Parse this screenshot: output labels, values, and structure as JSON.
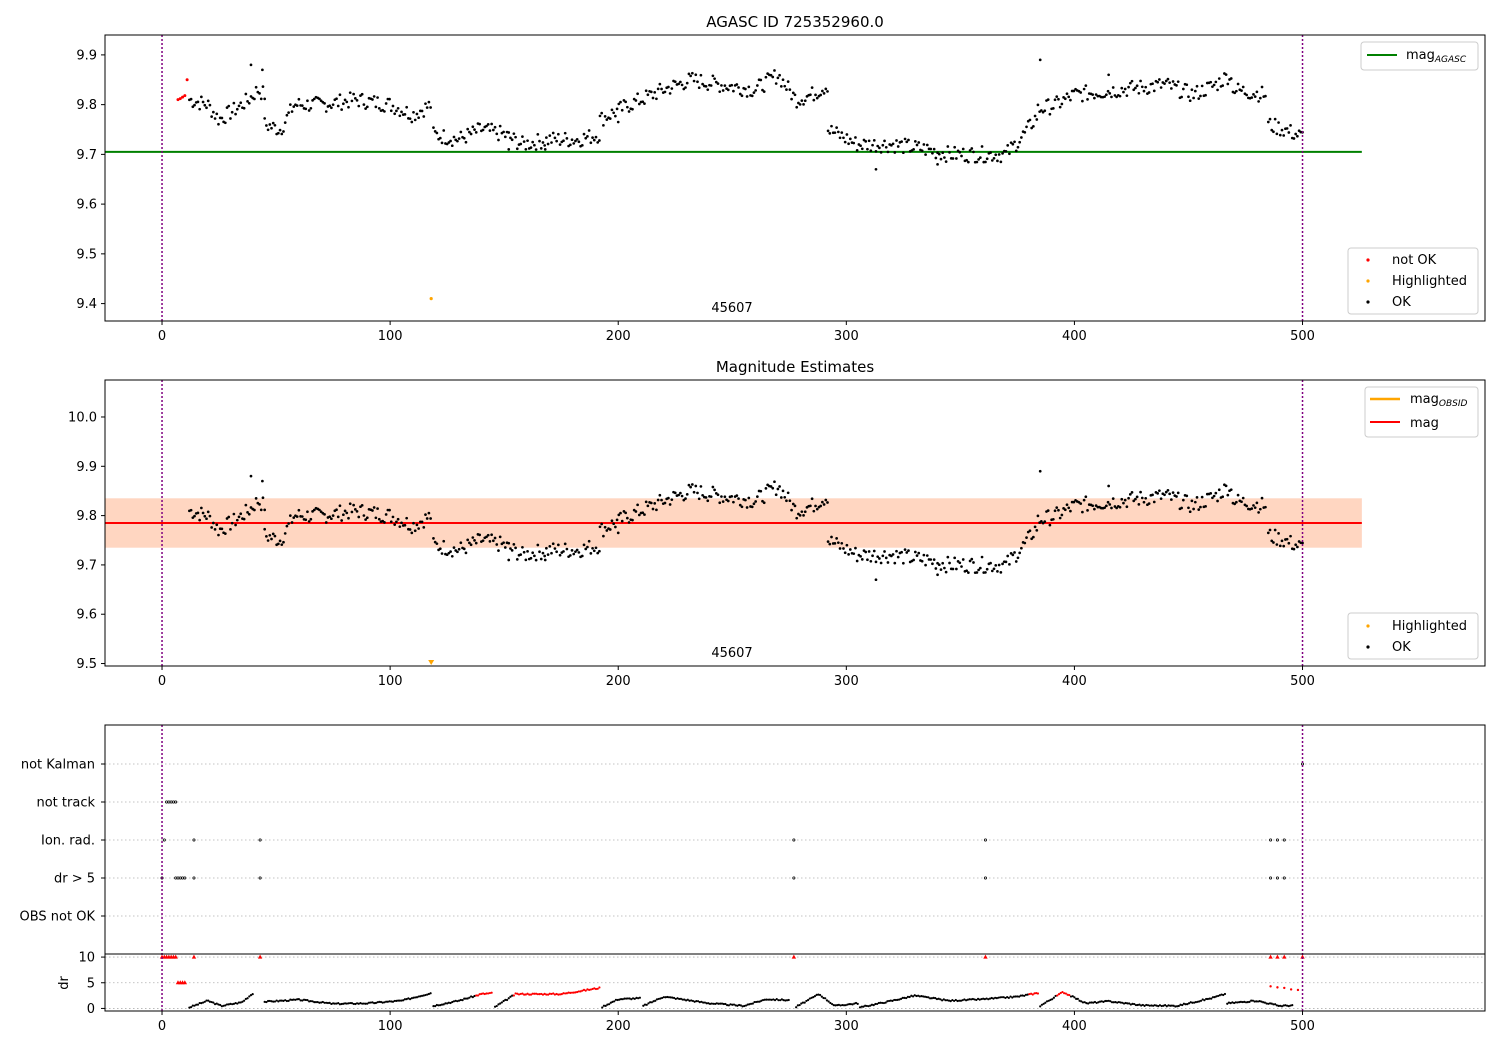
{
  "figure": {
    "panel1": {
      "title": "AGASC ID 725352960.0",
      "mag_agasc": 9.705,
      "obsid_label": "45607",
      "legend_line": {
        "label": "mag",
        "sub": "AGASC"
      },
      "legend_points": [
        "not OK",
        "Highlighted",
        "OK"
      ],
      "xlim": [
        -25,
        580
      ],
      "ylim": [
        9.365,
        9.94
      ],
      "xticks": [
        0,
        100,
        200,
        300,
        400,
        500
      ],
      "yticks": [
        9.4,
        9.5,
        9.6,
        9.7,
        9.8,
        9.9
      ],
      "vlines": [
        0,
        500
      ]
    },
    "panel2": {
      "title": "Magnitude Estimates",
      "mag": 9.785,
      "mag_band": [
        9.735,
        9.835
      ],
      "mag_obsid": 9.785,
      "obsid_label": "45607",
      "legend_lines": [
        {
          "label": "mag",
          "sub": "OBSID"
        },
        {
          "label": "mag",
          "sub": ""
        }
      ],
      "legend_points": [
        "Highlighted",
        "OK"
      ],
      "xlim": [
        -25,
        580
      ],
      "ylim": [
        9.495,
        10.075
      ],
      "xticks": [
        0,
        100,
        200,
        300,
        400,
        500
      ],
      "yticks": [
        9.5,
        9.6,
        9.7,
        9.8,
        9.9,
        10.0
      ],
      "vlines": [
        0,
        500
      ]
    },
    "panel3": {
      "flag_labels": [
        "not Kalman",
        "not track",
        "Ion. rad.",
        "dr > 5",
        "OBS not OK"
      ],
      "flag_points": {
        "not Kalman": [
          500
        ],
        "not track": [
          2,
          3,
          4,
          5,
          6
        ],
        "Ion. rad.": [
          1,
          14,
          43,
          277,
          361,
          486,
          489,
          492
        ],
        "dr > 5": [
          0,
          6,
          7,
          8,
          9,
          10,
          14,
          43,
          277,
          361,
          486,
          489,
          492
        ],
        "OBS not OK": []
      },
      "dr_ylabel": "dr",
      "dr_yticks": [
        0,
        5,
        10
      ],
      "dr_ylim": [
        -0.5,
        10.6
      ],
      "xlim": [
        -25,
        580
      ],
      "xticks": [
        0,
        100,
        200,
        300,
        400,
        500
      ],
      "vlines": [
        0,
        500
      ]
    }
  },
  "colors": {
    "ok": "#000000",
    "not_ok": "#ff0000",
    "highlighted": "#ffa500",
    "agasc_line": "#008000",
    "mag_line": "#ff0000",
    "mag_obsid_line": "#ffa500",
    "band_fill": "#ffc0cb",
    "band_obsid_fill": "#ffd2b4",
    "vline": "#800080",
    "grid": "#b0b0b0"
  },
  "chart_data": {
    "type": "scatter",
    "title": "AGASC ID 725352960.0",
    "subtitle": "Magnitude Estimates",
    "x_range": [
      0,
      500
    ],
    "series": [
      {
        "name": "OK",
        "color": "#000000",
        "segments": [
          {
            "x0": 12,
            "x1": 45,
            "knots": [
              [
                12,
                9.81
              ],
              [
                20,
                9.8
              ],
              [
                25,
                9.77
              ],
              [
                32,
                9.79
              ],
              [
                38,
                9.81
              ],
              [
                42,
                9.83
              ],
              [
                45,
                9.82
              ]
            ]
          },
          {
            "x0": 45,
            "x1": 118,
            "knots": [
              [
                45,
                9.76
              ],
              [
                52,
                9.75
              ],
              [
                58,
                9.8
              ],
              [
                70,
                9.8
              ],
              [
                85,
                9.81
              ],
              [
                100,
                9.8
              ],
              [
                110,
                9.78
              ],
              [
                118,
                9.8
              ]
            ]
          },
          {
            "x0": 119,
            "x1": 192,
            "knots": [
              [
                119,
                9.74
              ],
              [
                130,
                9.73
              ],
              [
                140,
                9.75
              ],
              [
                150,
                9.74
              ],
              [
                158,
                9.72
              ],
              [
                170,
                9.73
              ],
              [
                182,
                9.73
              ],
              [
                192,
                9.74
              ]
            ]
          },
          {
            "x0": 192,
            "x1": 292,
            "knots": [
              [
                192,
                9.77
              ],
              [
                205,
                9.8
              ],
              [
                220,
                9.83
              ],
              [
                232,
                9.85
              ],
              [
                245,
                9.84
              ],
              [
                260,
                9.83
              ],
              [
                270,
                9.86
              ],
              [
                278,
                9.81
              ],
              [
                285,
                9.82
              ],
              [
                292,
                9.84
              ]
            ]
          },
          {
            "x0": 292,
            "x1": 384,
            "knots": [
              [
                292,
                9.75
              ],
              [
                305,
                9.72
              ],
              [
                320,
                9.72
              ],
              [
                335,
                9.71
              ],
              [
                345,
                9.7
              ],
              [
                355,
                9.7
              ],
              [
                370,
                9.7
              ],
              [
                378,
                9.74
              ],
              [
                384,
                9.78
              ]
            ]
          },
          {
            "x0": 384,
            "x1": 484,
            "knots": [
              [
                384,
                9.79
              ],
              [
                392,
                9.8
              ],
              [
                400,
                9.82
              ],
              [
                420,
                9.83
              ],
              [
                440,
                9.84
              ],
              [
                452,
                9.82
              ],
              [
                462,
                9.84
              ],
              [
                468,
                9.86
              ],
              [
                470,
                9.83
              ],
              [
                484,
                9.82
              ]
            ]
          },
          {
            "x0": 485,
            "x1": 500,
            "knots": [
              [
                485,
                9.76
              ],
              [
                492,
                9.75
              ],
              [
                500,
                9.735
              ]
            ]
          }
        ],
        "extras": [
          [
            39,
            9.88
          ],
          [
            44,
            9.87
          ],
          [
            385,
            9.89
          ],
          [
            415,
            9.86
          ],
          [
            313,
            9.67
          ],
          [
            340,
            9.68
          ],
          [
            152,
            9.71
          ],
          [
            168,
            9.71
          ],
          [
            200,
            9.765
          ]
        ]
      },
      {
        "name": "not OK",
        "color": "#ff0000",
        "points": [
          [
            7,
            9.81
          ],
          [
            8,
            9.812
          ],
          [
            9,
            9.815
          ],
          [
            10,
            9.818
          ],
          [
            11,
            9.85
          ]
        ]
      },
      {
        "name": "Highlighted",
        "color": "#ffa500",
        "points": [
          [
            118,
            9.41
          ]
        ]
      }
    ],
    "mag_agasc": 9.705,
    "mag": 9.785,
    "dr": {
      "red_points": [
        [
          0,
          10
        ],
        [
          1,
          10
        ],
        [
          2,
          10
        ],
        [
          3,
          10
        ],
        [
          4,
          10
        ],
        [
          5,
          10
        ],
        [
          6,
          10
        ],
        [
          7,
          5
        ],
        [
          8,
          5
        ],
        [
          9,
          5
        ],
        [
          10,
          5
        ],
        [
          14,
          10
        ],
        [
          43,
          10
        ],
        [
          277,
          10
        ],
        [
          361,
          10
        ],
        [
          486,
          10
        ],
        [
          489,
          10
        ],
        [
          492,
          10
        ],
        [
          500,
          10
        ]
      ],
      "segments": [
        {
          "x0": 12,
          "x1": 40,
          "knots": [
            [
              12,
              0.2
            ],
            [
              20,
              1.5
            ],
            [
              26,
              0.5
            ],
            [
              35,
              1.2
            ],
            [
              40,
              3.0
            ]
          ]
        },
        {
          "x0": 45,
          "x1": 118,
          "knots": [
            [
              45,
              1.3
            ],
            [
              60,
              1.7
            ],
            [
              75,
              0.9
            ],
            [
              90,
              1.0
            ],
            [
              105,
              1.5
            ],
            [
              118,
              3.0
            ]
          ]
        },
        {
          "x0": 119,
          "x1": 145,
          "knots": [
            [
              119,
              0.5
            ],
            [
              130,
              1.5
            ],
            [
              140,
              2.8
            ],
            [
              145,
              3.0
            ]
          ]
        },
        {
          "x0": 146,
          "x1": 192,
          "knots": [
            [
              146,
              0.3
            ],
            [
              155,
              2.8
            ],
            [
              175,
              2.8
            ],
            [
              192,
              4.0
            ]
          ]
        },
        {
          "x0": 193,
          "x1": 210,
          "knots": [
            [
              193,
              0.3
            ],
            [
              200,
              1.8
            ],
            [
              210,
              2.0
            ]
          ]
        },
        {
          "x0": 211,
          "x1": 275,
          "knots": [
            [
              211,
              0.5
            ],
            [
              220,
              2.3
            ],
            [
              240,
              1.0
            ],
            [
              255,
              0.5
            ],
            [
              265,
              1.8
            ],
            [
              275,
              1.6
            ]
          ]
        },
        {
          "x0": 278,
          "x1": 305,
          "knots": [
            [
              278,
              0.3
            ],
            [
              288,
              2.8
            ],
            [
              295,
              0.5
            ],
            [
              305,
              1.0
            ]
          ]
        },
        {
          "x0": 306,
          "x1": 384,
          "knots": [
            [
              306,
              0.2
            ],
            [
              320,
              1.5
            ],
            [
              330,
              2.5
            ],
            [
              345,
              1.5
            ],
            [
              360,
              1.8
            ],
            [
              375,
              2.3
            ],
            [
              384,
              3.0
            ]
          ]
        },
        {
          "x0": 385,
          "x1": 466,
          "knots": [
            [
              385,
              0.5
            ],
            [
              395,
              3.2
            ],
            [
              405,
              1.0
            ],
            [
              415,
              1.4
            ],
            [
              430,
              0.6
            ],
            [
              445,
              0.5
            ],
            [
              460,
              2.0
            ],
            [
              466,
              2.8
            ]
          ]
        },
        {
          "x0": 467,
          "x1": 496,
          "knots": [
            [
              467,
              1.0
            ],
            [
              480,
              1.5
            ],
            [
              490,
              0.5
            ],
            [
              496,
              0.6
            ]
          ]
        }
      ]
    }
  }
}
